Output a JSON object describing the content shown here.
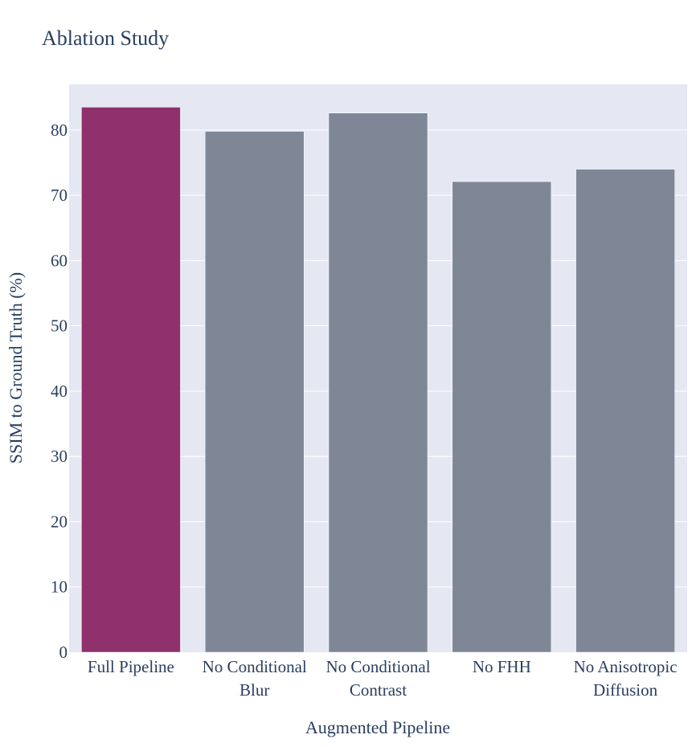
{
  "chart_data": {
    "type": "bar",
    "title": "Ablation Study",
    "xlabel": "Augmented Pipeline",
    "ylabel": "SSIM to Ground Truth (%)",
    "categories": [
      [
        "Full Pipeline"
      ],
      [
        "No Conditional",
        "Blur"
      ],
      [
        "No Conditional",
        "Contrast"
      ],
      [
        "No FHH"
      ],
      [
        "No Anisotropic",
        "Diffusion"
      ]
    ],
    "values": [
      83.5,
      79.8,
      82.6,
      72.1,
      74.0
    ],
    "bar_colors": [
      "#8e316c",
      "#7f8797",
      "#7f8797",
      "#7f8797",
      "#7f8797"
    ],
    "ylim": [
      0,
      87
    ],
    "yticks": [
      0,
      10,
      20,
      30,
      40,
      50,
      60,
      70,
      80
    ],
    "grid": true,
    "legend": "none",
    "colors": {
      "plot_background": "#e5e8f3",
      "gridline": "#ffffff",
      "text": "#2a3f5f"
    }
  }
}
